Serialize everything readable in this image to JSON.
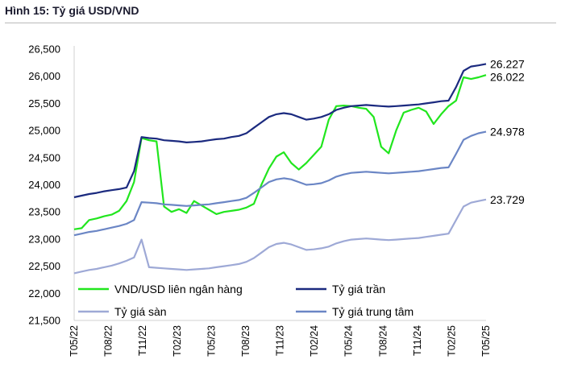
{
  "figure_title": "Hình 15: Tỷ giá USD/VND",
  "chart_data": {
    "type": "line",
    "title": "",
    "xlabel": "",
    "ylabel": "",
    "ylim": [
      21500,
      26500
    ],
    "y_ticks": [
      "21,500",
      "22,000",
      "22,500",
      "23,000",
      "23,500",
      "24,000",
      "24,500",
      "25,000",
      "25,500",
      "26,000",
      "26,500"
    ],
    "x_ticks": [
      "T05/22",
      "T08/22",
      "T11/22",
      "T02/23",
      "T05/23",
      "T08/23",
      "T11/23",
      "T02/24",
      "T05/24",
      "T08/24",
      "T11/24",
      "T02/25",
      "T05/25"
    ],
    "grid": false,
    "legend_position": "bottom",
    "series": [
      {
        "name": "VND/USD liên ngân hàng",
        "color": "#21e61e",
        "end_label": "26.022",
        "values": [
          23180,
          23200,
          23350,
          23380,
          23420,
          23450,
          23520,
          23700,
          24050,
          24860,
          24820,
          24800,
          23600,
          23500,
          23550,
          23480,
          23700,
          23620,
          23540,
          23460,
          23500,
          23520,
          23540,
          23580,
          23650,
          24000,
          24300,
          24520,
          24600,
          24400,
          24280,
          24400,
          24550,
          24700,
          25200,
          25450,
          25460,
          25450,
          25420,
          25400,
          25250,
          24700,
          24580,
          25000,
          25330,
          25380,
          25420,
          25350,
          25120,
          25300,
          25450,
          25550,
          25980,
          25950,
          25980,
          26022
        ]
      },
      {
        "name": "Tỷ giá trần",
        "color": "#1b2a7f",
        "end_label": "26.227",
        "values": [
          23770,
          23800,
          23830,
          23850,
          23880,
          23900,
          23920,
          23950,
          24250,
          24880,
          24860,
          24850,
          24820,
          24810,
          24800,
          24780,
          24790,
          24800,
          24820,
          24840,
          24850,
          24880,
          24900,
          24950,
          25050,
          25150,
          25250,
          25300,
          25320,
          25300,
          25250,
          25200,
          25220,
          25250,
          25300,
          25380,
          25420,
          25450,
          25460,
          25470,
          25460,
          25450,
          25440,
          25450,
          25460,
          25470,
          25480,
          25500,
          25520,
          25540,
          25550,
          25800,
          26100,
          26180,
          26200,
          26227
        ]
      },
      {
        "name": "Tỷ giá sàn",
        "color": "#9ea9d6",
        "end_label": "23.729",
        "values": [
          22370,
          22400,
          22430,
          22450,
          22480,
          22510,
          22550,
          22600,
          22660,
          22990,
          22480,
          22470,
          22460,
          22450,
          22440,
          22430,
          22440,
          22450,
          22460,
          22480,
          22500,
          22520,
          22540,
          22580,
          22650,
          22750,
          22850,
          22910,
          22930,
          22900,
          22850,
          22800,
          22810,
          22830,
          22860,
          22920,
          22960,
          22990,
          23000,
          23010,
          23000,
          22990,
          22980,
          22990,
          23000,
          23010,
          23020,
          23040,
          23060,
          23080,
          23100,
          23350,
          23600,
          23670,
          23700,
          23729
        ]
      },
      {
        "name": "Tỷ giá trung tâm",
        "color": "#6b86c5",
        "end_label": "24.978",
        "values": [
          23070,
          23100,
          23130,
          23150,
          23180,
          23210,
          23240,
          23280,
          23350,
          23680,
          23670,
          23660,
          23640,
          23630,
          23620,
          23610,
          23620,
          23630,
          23640,
          23660,
          23680,
          23700,
          23720,
          23760,
          23850,
          23950,
          24050,
          24100,
          24120,
          24100,
          24050,
          24000,
          24010,
          24030,
          24080,
          24150,
          24190,
          24220,
          24230,
          24240,
          24230,
          24220,
          24210,
          24220,
          24230,
          24240,
          24250,
          24270,
          24290,
          24310,
          24320,
          24570,
          24830,
          24900,
          24950,
          24978
        ]
      }
    ]
  }
}
